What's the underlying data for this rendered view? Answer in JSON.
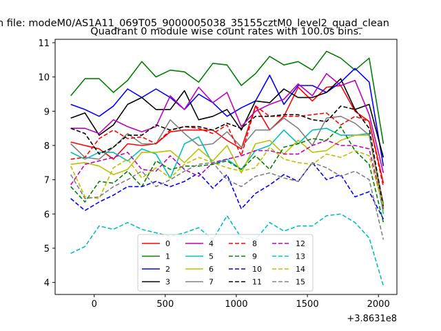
{
  "chart_data": {
    "type": "line",
    "file_title": "n file: modeM0/AS1A11_069T05_9000005038_35155cztM0_level2_quad_clean",
    "title": "Quadrant 0 module wise count rates with 100.0s bins.",
    "xlabel": "",
    "ylabel": "",
    "x_offset_label": "+3.8631e8",
    "xlim": [
      -275,
      2130
    ],
    "ylim": [
      3.65,
      11.1
    ],
    "x_ticks": [
      0,
      500,
      1000,
      1500,
      2000
    ],
    "y_ticks": [
      4,
      5,
      6,
      7,
      8,
      9,
      10,
      11
    ],
    "grid": false,
    "legend_position": "lower-center",
    "x": [
      -165,
      -65,
      35,
      135,
      235,
      335,
      435,
      535,
      635,
      735,
      835,
      935,
      1035,
      1135,
      1235,
      1335,
      1435,
      1535,
      1635,
      1735,
      1835,
      1935,
      2035
    ],
    "series": [
      {
        "name": "0",
        "color": "#ff0000",
        "style": "solid",
        "values": [
          8.1,
          8.0,
          7.9,
          7.6,
          8.05,
          8.0,
          8.05,
          8.4,
          8.45,
          8.45,
          8.45,
          8.15,
          7.9,
          9.15,
          8.45,
          8.85,
          9.7,
          9.3,
          9.7,
          9.75,
          9.0,
          8.7,
          6.9
        ]
      },
      {
        "name": "1",
        "color": "#008000",
        "style": "solid",
        "values": [
          9.45,
          9.95,
          9.95,
          9.55,
          9.9,
          10.45,
          10.0,
          10.2,
          10.15,
          9.85,
          10.4,
          10.35,
          9.75,
          10.1,
          10.6,
          10.35,
          10.45,
          10.2,
          10.75,
          10.55,
          10.2,
          10.55,
          8.05
        ]
      },
      {
        "name": "2",
        "color": "#0000ff",
        "style": "solid",
        "values": [
          9.2,
          9.05,
          8.85,
          9.15,
          9.65,
          9.4,
          9.65,
          9.4,
          9.05,
          9.5,
          9.25,
          8.85,
          9.1,
          9.3,
          10.05,
          9.2,
          9.75,
          9.75,
          9.55,
          9.85,
          10.25,
          9.85,
          7.4
        ]
      },
      {
        "name": "3",
        "color": "#000000",
        "style": "solid",
        "values": [
          8.8,
          8.95,
          8.3,
          8.6,
          9.2,
          9.4,
          9.05,
          9.05,
          9.6,
          8.75,
          8.85,
          9.05,
          8.45,
          9.3,
          9.25,
          9.65,
          9.4,
          9.4,
          9.55,
          9.95,
          9.05,
          9.2,
          7.65
        ]
      },
      {
        "name": "4",
        "color": "#bf00bf",
        "style": "solid",
        "values": [
          8.5,
          8.5,
          8.35,
          8.75,
          8.55,
          8.4,
          8.55,
          9.45,
          9.05,
          9.7,
          9.25,
          9.55,
          8.55,
          9.0,
          9.2,
          9.35,
          9.8,
          9.45,
          10.1,
          9.75,
          9.9,
          8.9,
          7.2
        ]
      },
      {
        "name": "5",
        "color": "#00bfbf",
        "style": "solid",
        "values": [
          7.8,
          7.6,
          7.8,
          7.8,
          7.55,
          7.9,
          7.75,
          7.05,
          8.05,
          8.25,
          7.45,
          7.6,
          7.3,
          7.85,
          8.0,
          8.45,
          8.05,
          8.45,
          8.5,
          8.3,
          8.3,
          8.35,
          6.0
        ]
      },
      {
        "name": "6",
        "color": "#bfbf00",
        "style": "solid",
        "values": [
          7.45,
          7.5,
          7.4,
          7.15,
          7.3,
          7.8,
          7.8,
          7.85,
          7.5,
          7.9,
          7.55,
          8.0,
          7.2,
          8.05,
          8.15,
          7.75,
          8.15,
          7.8,
          7.85,
          8.15,
          8.3,
          8.3,
          6.1
        ]
      },
      {
        "name": "7",
        "color": "#808080",
        "style": "solid",
        "values": [
          8.05,
          7.65,
          7.6,
          7.95,
          8.35,
          8.05,
          8.05,
          8.75,
          8.35,
          8.0,
          8.05,
          8.4,
          7.95,
          8.45,
          8.45,
          8.8,
          8.5,
          8.0,
          8.8,
          8.85,
          8.65,
          8.3,
          6.3
        ]
      },
      {
        "name": "8",
        "color": "#ff0000",
        "style": "dashed",
        "values": [
          7.6,
          7.65,
          8.2,
          8.45,
          8.2,
          8.25,
          8.05,
          8.45,
          8.55,
          8.5,
          8.35,
          8.6,
          7.7,
          9.15,
          8.85,
          8.85,
          8.85,
          8.9,
          8.95,
          8.6,
          8.85,
          8.7,
          6.8
        ]
      },
      {
        "name": "9",
        "color": "#008000",
        "style": "dashed",
        "values": [
          6.8,
          6.35,
          6.95,
          6.9,
          7.25,
          6.8,
          7.55,
          7.3,
          7.4,
          7.4,
          7.45,
          7.55,
          7.3,
          7.7,
          7.3,
          7.95,
          8.05,
          8.2,
          8.15,
          8.55,
          7.85,
          7.45,
          5.75
        ]
      },
      {
        "name": "10",
        "color": "#0000ff",
        "style": "dashed",
        "values": [
          6.45,
          6.1,
          6.35,
          6.55,
          6.8,
          6.8,
          6.95,
          6.8,
          6.95,
          7.2,
          6.75,
          7.15,
          6.15,
          6.6,
          6.85,
          7.15,
          6.95,
          7.5,
          7.0,
          7.15,
          6.5,
          6.65,
          5.85
        ]
      },
      {
        "name": "11",
        "color": "#000000",
        "style": "dashed",
        "values": [
          8.5,
          8.35,
          7.75,
          7.95,
          8.3,
          8.3,
          8.6,
          8.45,
          8.55,
          8.55,
          8.45,
          8.65,
          8.5,
          8.85,
          8.85,
          8.9,
          8.9,
          8.75,
          8.7,
          9.15,
          9.05,
          8.5,
          6.2
        ]
      },
      {
        "name": "12",
        "color": "#bf00bf",
        "style": "dashed",
        "values": [
          6.85,
          7.45,
          7.55,
          7.65,
          7.8,
          7.3,
          7.25,
          7.7,
          7.3,
          7.1,
          7.5,
          7.6,
          7.7,
          7.85,
          7.85,
          7.75,
          7.75,
          8.0,
          8.15,
          8.0,
          8.0,
          7.9,
          6.15
        ]
      },
      {
        "name": "13",
        "color": "#00bfbf",
        "style": "dashed",
        "values": [
          4.85,
          5.05,
          5.65,
          5.55,
          5.75,
          5.55,
          5.45,
          5.35,
          5.45,
          5.6,
          5.25,
          5.95,
          5.3,
          5.25,
          5.75,
          5.5,
          5.65,
          5.65,
          5.95,
          6.0,
          5.75,
          5.3,
          3.9
        ]
      },
      {
        "name": "14",
        "color": "#bfbf00",
        "style": "dashed",
        "values": [
          7.4,
          6.5,
          6.45,
          7.35,
          7.6,
          7.05,
          7.35,
          7.05,
          7.45,
          7.65,
          7.5,
          7.35,
          7.25,
          7.35,
          7.95,
          7.6,
          7.5,
          7.45,
          7.75,
          7.65,
          7.85,
          7.7,
          6.2
        ]
      },
      {
        "name": "15",
        "color": "#808080",
        "style": "dashed",
        "values": [
          7.15,
          6.45,
          6.5,
          6.8,
          7.0,
          7.25,
          6.8,
          7.0,
          7.25,
          7.45,
          7.5,
          7.0,
          6.8,
          7.1,
          7.2,
          7.05,
          6.95,
          7.5,
          7.35,
          7.1,
          7.25,
          7.0,
          5.25
        ]
      }
    ]
  }
}
